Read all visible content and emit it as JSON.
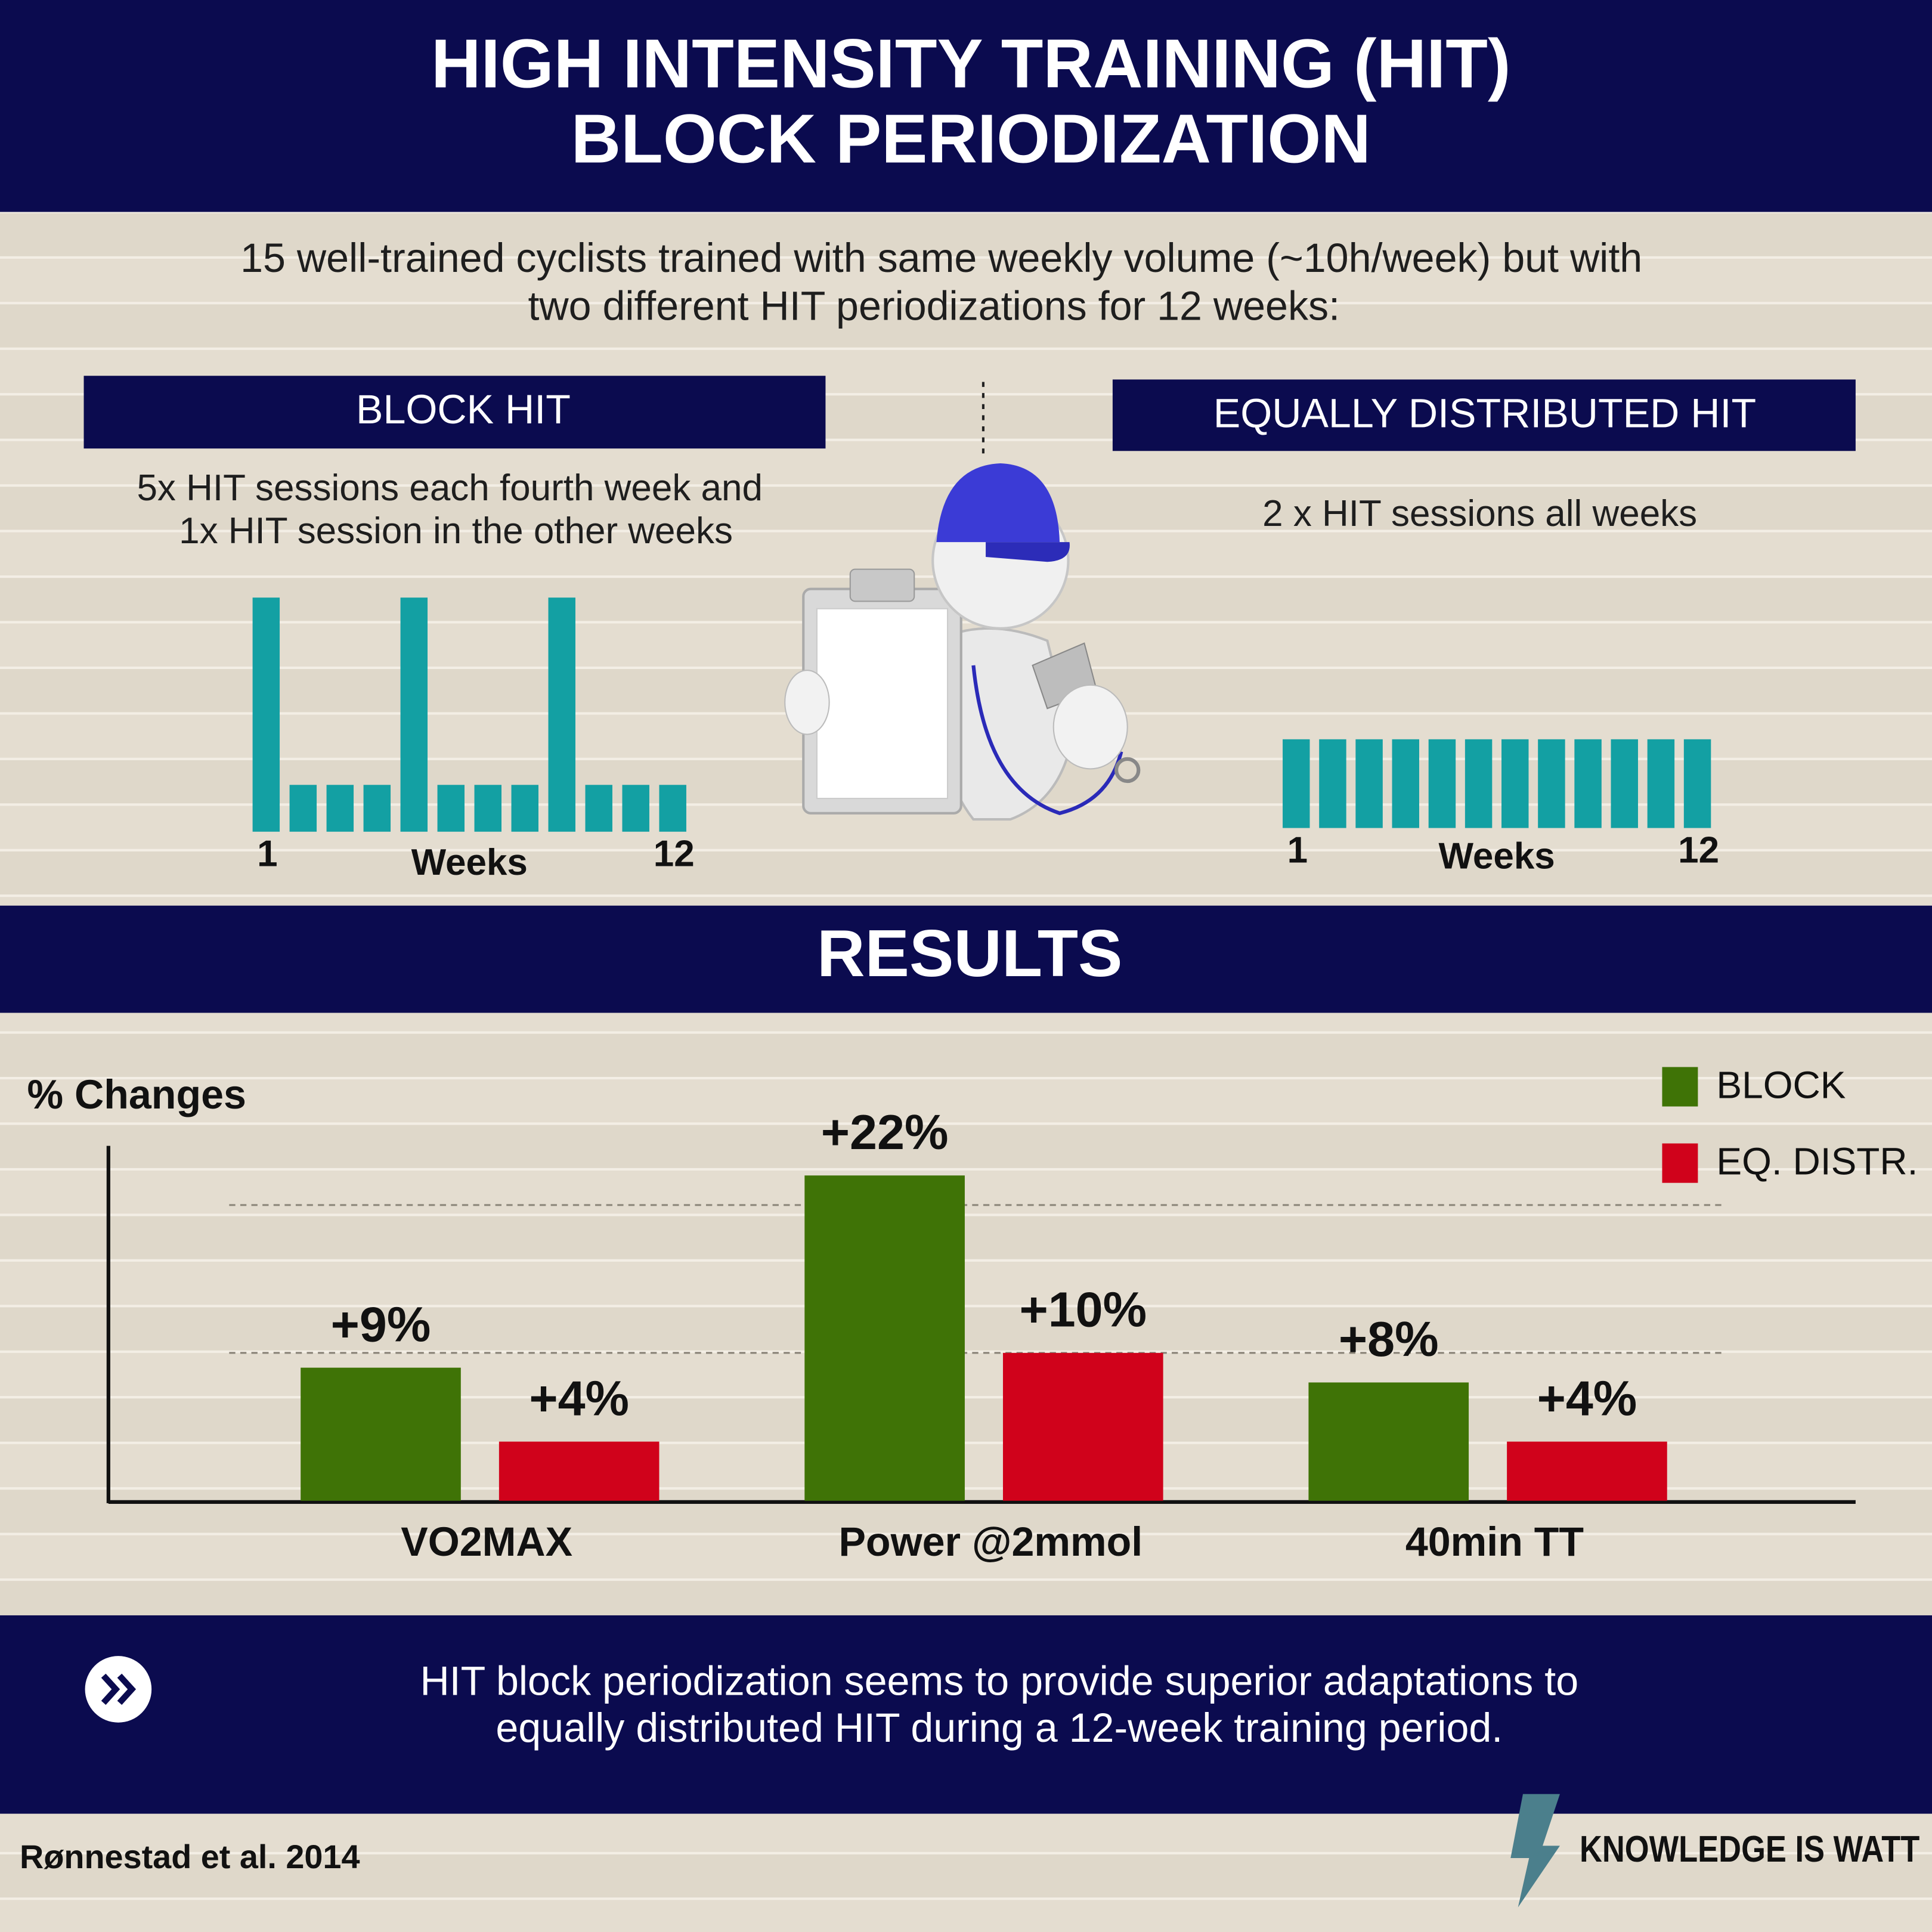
{
  "header": {
    "title_lines": [
      "HIGH INTENSITY TRAINING (HIT)",
      "BLOCK PERIODIZATION"
    ]
  },
  "intro": {
    "lines": [
      "15 well-trained cyclists trained with same weekly volume (~10h/week) but with",
      "two different HIT periodizations for 12 weeks:"
    ]
  },
  "block_hit": {
    "heading": "BLOCK HIT",
    "description_lines": [
      "5x HIT sessions each fourth week and",
      "1x HIT session in the other weeks"
    ]
  },
  "equal_hit": {
    "heading": "EQUALLY DISTRIBUTED HIT",
    "description": "2 x HIT sessions all weeks"
  },
  "results_heading": "RESULTS",
  "chart_data": [
    {
      "type": "bar",
      "x_label": "Weeks",
      "categories": [
        "1",
        null,
        null,
        null,
        null,
        null,
        null,
        null,
        null,
        null,
        null,
        "12"
      ],
      "values": [
        5,
        1,
        1,
        1,
        5,
        1,
        1,
        1,
        5,
        1,
        1,
        1
      ],
      "color": "#13a0a3"
    },
    {
      "type": "bar",
      "x_label": "Weeks",
      "categories": [
        "1",
        null,
        null,
        null,
        null,
        null,
        null,
        null,
        null,
        null,
        null,
        "12"
      ],
      "values": [
        2,
        2,
        2,
        2,
        2,
        2,
        2,
        2,
        2,
        2,
        2,
        2
      ],
      "color": "#13a0a3"
    },
    {
      "type": "grouped_bar",
      "y_label": "% Changes",
      "categories": [
        "VO2MAX",
        "Power @2mmol",
        "40min TT"
      ],
      "series": [
        {
          "name": "BLOCK",
          "color": "#3f7306",
          "values": [
            9,
            22,
            8
          ],
          "value_labels": [
            "+9%",
            "+22%",
            "+8%"
          ]
        },
        {
          "name": "EQ. DISTR.",
          "color": "#d0021b",
          "values": [
            4,
            10,
            4
          ],
          "value_labels": [
            "+4%",
            "+10%",
            "+4%"
          ]
        }
      ],
      "ylim": [
        0,
        24
      ],
      "reference_lines": [
        10,
        20
      ],
      "legend": "upper right"
    }
  ],
  "conclusion": {
    "lines": [
      "HIT block periodization seems to provide superior adaptations to",
      "equally distributed HIT during a 12-week training period."
    ]
  },
  "citation": "Rønnestad et al. 2014",
  "brand": "KNOWLEDGE IS WATT"
}
